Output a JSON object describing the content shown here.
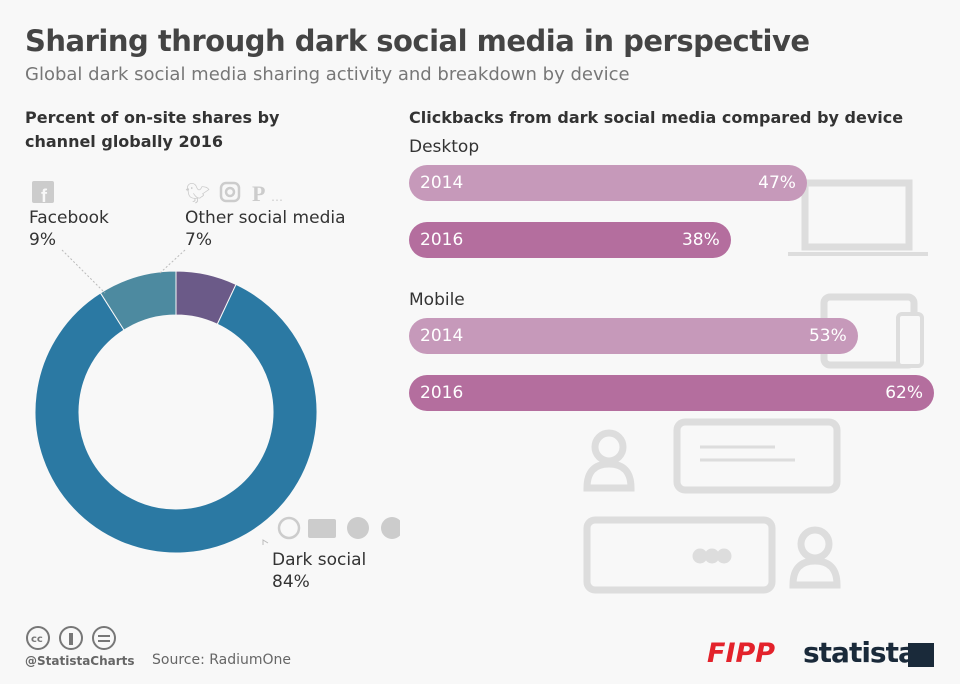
{
  "title": "Sharing through dark social media in perspective",
  "subtitle": "Global dark social media sharing activity and breakdown by device",
  "colors": {
    "dark_social": "#2b79a3",
    "facebook": "#4d8aa0",
    "other": "#6b5a88",
    "bar_2014": "#c699ba",
    "bar_2016": "#b46e9e"
  },
  "chart_data": [
    {
      "type": "pie",
      "title": "Percent of on-site shares by channel globally 2016",
      "slices": [
        {
          "label": "Other social media",
          "value": 7,
          "value_label": "7%"
        },
        {
          "label": "Dark social",
          "value": 84,
          "value_label": "84%"
        },
        {
          "label": "Facebook",
          "value": 9,
          "value_label": "9%"
        }
      ]
    },
    {
      "type": "bar",
      "title": "Clickbacks from dark social media compared by device",
      "groups": [
        {
          "name": "Desktop",
          "bars": [
            {
              "year": "2014",
              "value": 47,
              "label": "47%"
            },
            {
              "year": "2016",
              "value": 38,
              "label": "38%"
            }
          ]
        },
        {
          "name": "Mobile",
          "bars": [
            {
              "year": "2014",
              "value": 53,
              "label": "53%"
            },
            {
              "year": "2016",
              "value": 62,
              "label": "62%"
            }
          ]
        }
      ]
    }
  ],
  "footer": {
    "handle": "@StatistaCharts",
    "source": "Source: RadiumOne",
    "brand1": "FIPP",
    "brand2": "statista"
  }
}
